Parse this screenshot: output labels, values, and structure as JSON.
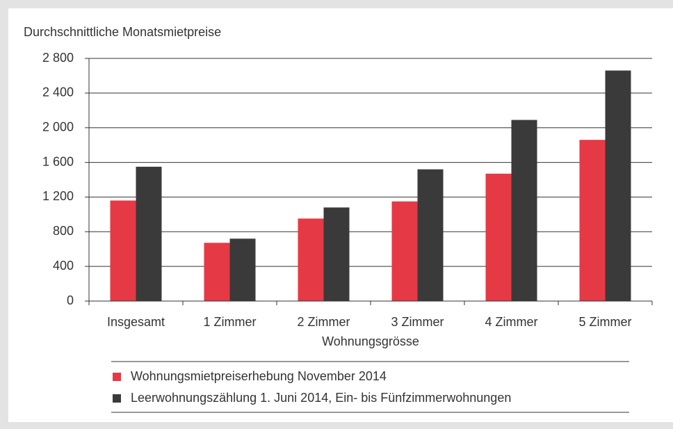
{
  "chart_data": {
    "type": "bar",
    "title": "Durchschnittliche Monatsmietpreise",
    "x_label": "Wohnungsgrösse",
    "categories": [
      "Insgesamt",
      "1 Zimmer",
      "2 Zimmer",
      "3 Zimmer",
      "4 Zimmer",
      "5 Zimmer"
    ],
    "series": [
      {
        "name": "Wohnungsmietpreiserhebung November 2014",
        "color": "#e63946",
        "values": [
          1160,
          672,
          952,
          1150,
          1470,
          1860
        ]
      },
      {
        "name": "Leerwohnungszählung 1. Juni 2014, Ein- bis Fünfzimmerwohnungen",
        "color": "#3a3a3a",
        "values": [
          1550,
          720,
          1080,
          1520,
          2090,
          2660
        ]
      }
    ],
    "ylim": [
      0,
      2800
    ],
    "yticks": [
      0,
      400,
      800,
      {
        "value": 1200,
        "label": "1 200"
      },
      {
        "value": 1600,
        "label": "1 600"
      },
      {
        "value": 2000,
        "label": "2 000"
      },
      {
        "value": 2400,
        "label": "2 400"
      },
      {
        "value": 2800,
        "label": "2 800"
      }
    ],
    "grid": true
  }
}
